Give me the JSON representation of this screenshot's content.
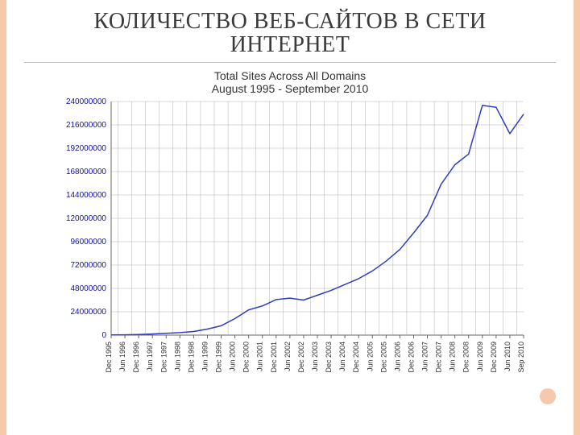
{
  "title": "КОЛИЧЕСТВО ВЕБ-САЙТОВ В СЕТИ ИНТЕРНЕТ",
  "chart": {
    "type": "line",
    "title": "Total Sites Across All Domains",
    "subtitle": "August 1995 - September 2010",
    "line_color": "#2e3cc4",
    "line_width": 1.5,
    "background_color": "#ffffff",
    "grid_color": "#b0b0b0",
    "tick_label_color": "#10109e",
    "tick_fontsize": 10,
    "ylim": [
      0,
      240000000
    ],
    "ytick_step": 24000000,
    "yticks": [
      0,
      24000000,
      48000000,
      72000000,
      96000000,
      120000000,
      144000000,
      168000000,
      192000000,
      216000000,
      240000000
    ],
    "x_labels": [
      "Dec 1995",
      "Jun 1996",
      "Dec 1996",
      "Jun 1997",
      "Dec 1997",
      "Jun 1998",
      "Dec 1998",
      "Jun 1999",
      "Dec 1999",
      "Jun 2000",
      "Dec 2000",
      "Jun 2001",
      "Dec 2001",
      "Jun 2002",
      "Dec 2002",
      "Jun 2003",
      "Dec 2003",
      "Jun 2004",
      "Dec 2004",
      "Jun 2005",
      "Dec 2005",
      "Jun 2006",
      "Dec 2006",
      "Jun 2007",
      "Dec 2007",
      "Jun 2008",
      "Dec 2008",
      "Jun 2009",
      "Dec 2009",
      "Jun 2010",
      "Sep 2010"
    ],
    "values": [
      200000,
      300000,
      650000,
      1200000,
      1800000,
      2600000,
      3700000,
      6200000,
      9600000,
      17000000,
      26000000,
      30000000,
      36500000,
      38000000,
      36000000,
      41000000,
      46000000,
      52000000,
      58000000,
      66000000,
      76000000,
      88000000,
      105000000,
      123000000,
      155000000,
      175000000,
      186000000,
      236000000,
      234000000,
      207000000,
      227000000
    ]
  },
  "decor": {
    "bar_color": "#f6c9ad",
    "dot_color": "#f6c9ad"
  }
}
